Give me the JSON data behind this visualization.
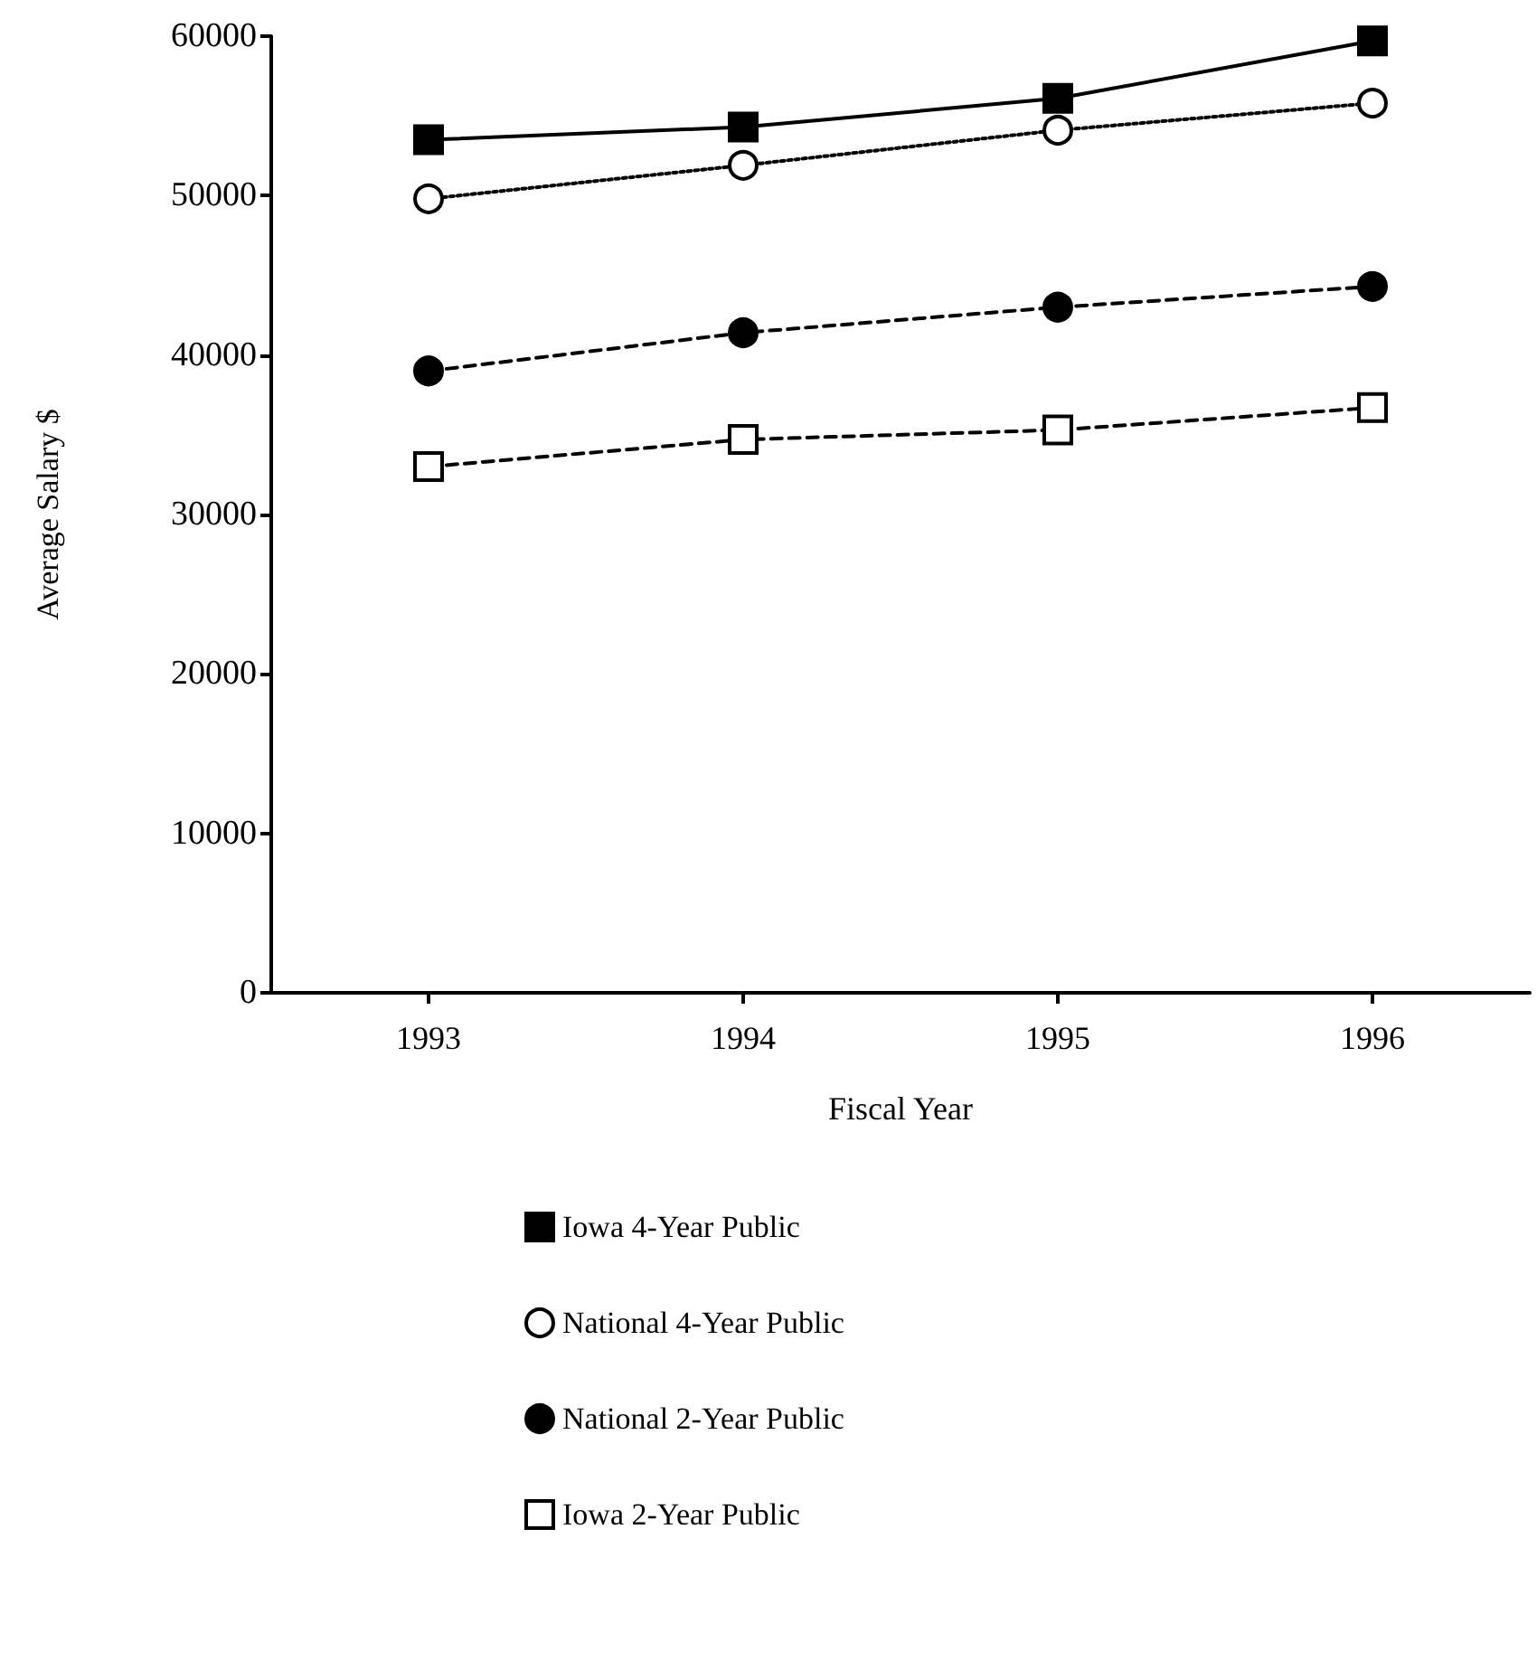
{
  "chart_data": {
    "type": "line",
    "xlabel": "Fiscal Year",
    "ylabel": "Average Salary $",
    "categories": [
      "1993",
      "1994",
      "1995",
      "1996"
    ],
    "ylim": [
      0,
      60000
    ],
    "yticks": [
      0,
      10000,
      20000,
      30000,
      40000,
      50000,
      60000
    ],
    "grid": false,
    "legend": "bottom",
    "series": [
      {
        "name": "Iowa 4-Year Public",
        "color": "#000000",
        "marker": "square",
        "line_style": "solid",
        "values": [
          53500,
          54300,
          56100,
          59700
        ]
      },
      {
        "name": "National 4-Year Public",
        "color": "#000000",
        "colors": [
          "#ffffff",
          "#ffffff",
          "#ffffff",
          "#ffffff"
        ],
        "marker": "circle",
        "line_style": "dotted",
        "values": [
          49800,
          51900,
          54100,
          55800
        ]
      },
      {
        "name": "National 2-Year Public",
        "color": "#000000",
        "marker": "circle",
        "line_style": "dashed",
        "values": [
          39000,
          41400,
          43000,
          44300
        ]
      },
      {
        "name": "Iowa 2-Year Public",
        "color": "#000000",
        "colors": [
          "#ffffff",
          "#ffffff",
          "#ffffff",
          "#ffffff"
        ],
        "marker": "square",
        "line_style": "dashed",
        "values": [
          33000,
          34700,
          35300,
          36700
        ]
      }
    ]
  }
}
